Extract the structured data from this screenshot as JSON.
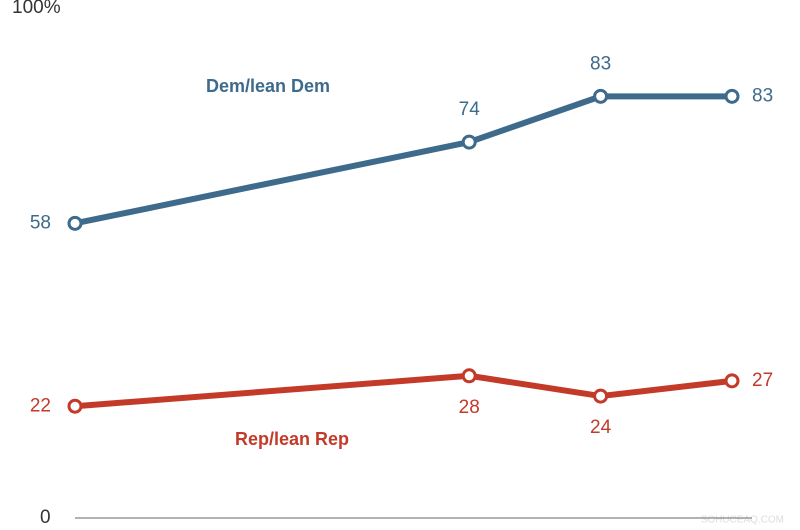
{
  "chart_data": {
    "type": "line",
    "x": [
      0,
      3,
      4,
      5
    ],
    "xlim": [
      0,
      5
    ],
    "ylim": [
      0,
      100
    ],
    "yticks": [
      0,
      {
        "value": 100,
        "label": "100%"
      }
    ],
    "series": [
      {
        "name": "Dem/lean Dem",
        "color": "#3e6b8c",
        "values": [
          58,
          74,
          83,
          83
        ]
      },
      {
        "name": "Rep/lean Rep",
        "color": "#c33a29",
        "values": [
          22,
          28,
          24,
          27
        ]
      }
    ],
    "watermark": "SOHUCEAQ.COM"
  }
}
